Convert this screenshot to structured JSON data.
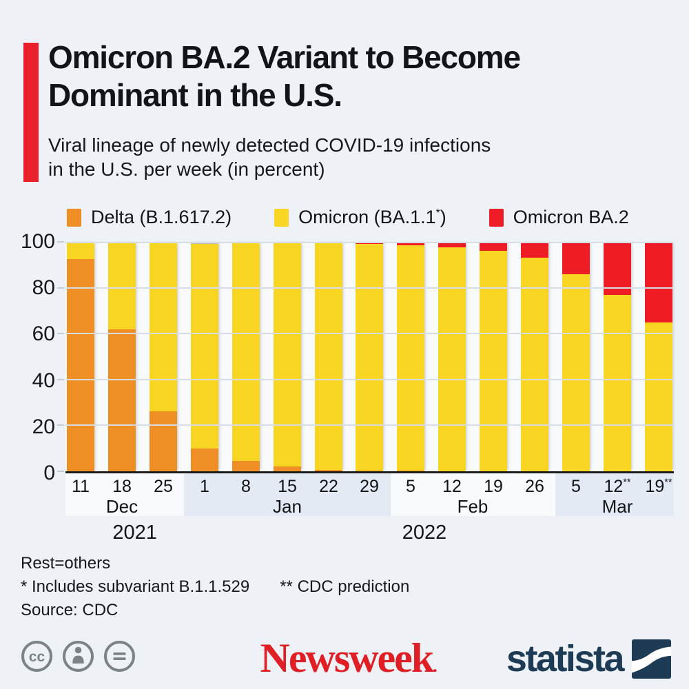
{
  "header": {
    "title_line1": "Omicron BA.2 Variant to Become",
    "title_line2": "Dominant in the U.S.",
    "subtitle_line1": "Viral lineage of newly detected COVID-19 infections",
    "subtitle_line2": "in the U.S. per week (in percent)"
  },
  "legend": {
    "items": [
      {
        "pre": "Delta (B.1.617.2)",
        "sup": "",
        "post": "",
        "color": "#ef8e24"
      },
      {
        "pre": "Omicron (BA.1.1",
        "sup": "*",
        "post": ")",
        "color": "#f8d423"
      },
      {
        "pre": "Omicron BA.2",
        "sup": "",
        "post": "",
        "color": "#ee1c25"
      }
    ]
  },
  "chart_data": {
    "type": "bar",
    "stacked": true,
    "title": "Omicron BA.2 Variant to Become Dominant in the U.S.",
    "subtitle": "Viral lineage of newly detected COVID-19 infections in the U.S. per week (in percent)",
    "legend_position": "top",
    "grid": true,
    "ylim": [
      0,
      100
    ],
    "yticks": [
      0,
      20,
      40,
      60,
      80,
      100
    ],
    "categories": [
      {
        "day": "11",
        "sup": ""
      },
      {
        "day": "18",
        "sup": ""
      },
      {
        "day": "25",
        "sup": ""
      },
      {
        "day": "1",
        "sup": ""
      },
      {
        "day": "8",
        "sup": ""
      },
      {
        "day": "15",
        "sup": ""
      },
      {
        "day": "22",
        "sup": ""
      },
      {
        "day": "29",
        "sup": ""
      },
      {
        "day": "5",
        "sup": ""
      },
      {
        "day": "12",
        "sup": ""
      },
      {
        "day": "19",
        "sup": ""
      },
      {
        "day": "26",
        "sup": ""
      },
      {
        "day": "5",
        "sup": ""
      },
      {
        "day": "12",
        "sup": "**"
      },
      {
        "day": "19",
        "sup": "**"
      }
    ],
    "series": [
      {
        "id": "delta",
        "name": "Delta (B.1.617.2)",
        "color": "#ef8e24",
        "values": [
          92.5,
          62,
          26,
          10,
          4.5,
          2,
          0.7,
          0.4,
          0.2,
          0,
          0,
          0,
          0,
          0,
          0
        ]
      },
      {
        "id": "omicron-ba11",
        "name": "Omicron (BA.1.1*)",
        "color": "#f8d423",
        "values": [
          7.5,
          38,
          74,
          89,
          95.5,
          98,
          98.8,
          98.6,
          98.3,
          97.5,
          96,
          93,
          86,
          77,
          65
        ]
      },
      {
        "id": "omicron-ba2",
        "name": "Omicron BA.2",
        "color": "#ee1c25",
        "values": [
          0,
          0,
          0,
          0,
          0,
          0,
          0.5,
          1,
          1.5,
          2.5,
          4,
          7,
          14,
          23,
          35
        ]
      },
      {
        "id": "others",
        "name": "Rest (others)",
        "color": "#b9bfc6",
        "values": [
          0,
          0,
          0,
          1,
          0,
          0,
          0,
          0,
          0,
          0,
          0,
          0,
          0,
          0,
          0
        ]
      }
    ],
    "months": [
      {
        "label": "Dec",
        "center_index": 1,
        "band": false,
        "start": 0,
        "count": 3
      },
      {
        "label": "Jan",
        "center_index": 5,
        "band": true,
        "start": 3,
        "count": 5
      },
      {
        "label": "Feb",
        "center_index": 9.5,
        "band": false,
        "start": 8,
        "count": 4
      },
      {
        "label": "Mar",
        "center_index": 13,
        "band": true,
        "start": 12,
        "count": 3
      }
    ],
    "years": [
      {
        "label": "2021",
        "pos_pct": 11.4
      },
      {
        "label": "2022",
        "pos_pct": 59
      }
    ]
  },
  "footnotes": {
    "line1": "Rest=others",
    "line2a": "* Includes subvariant B.1.1.529",
    "line2b": "** CDC prediction",
    "line3": "Source: CDC"
  },
  "footer": {
    "cc_text": "cc",
    "newsweek_wordmark": "Newsweek",
    "newsweek_dot": ".",
    "statista_wordmark": "statista"
  },
  "colors": {
    "background": "#eef2f6",
    "plot_background": "#f8fafc",
    "month_band": "#e3eaf3",
    "gridline": "#d7dde6",
    "axis": "#1c1d1a",
    "accent_red": "#e8202b",
    "delta_orange": "#ef8e24",
    "omicron_yellow": "#f8d423",
    "ba2_red": "#ee1c25",
    "others_gray": "#b9bfc6",
    "newsweek_red": "#e01e26",
    "statista_navy": "#1d3b54",
    "license_gray": "#7d8285"
  }
}
